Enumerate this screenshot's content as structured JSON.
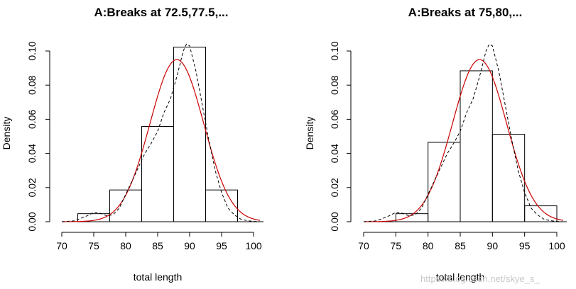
{
  "chart_data": [
    {
      "type": "bar",
      "title": "A:Breaks at 72.5,77.5,...",
      "xlabel": "total length",
      "ylabel": "Density",
      "xlim": [
        70,
        100
      ],
      "ylim": [
        0,
        0.1
      ],
      "xticks": [
        70,
        75,
        80,
        85,
        90,
        95,
        100
      ],
      "yticks": [
        0.0,
        0.02,
        0.04,
        0.06,
        0.08,
        0.1
      ],
      "ytick_labels": [
        "0.00",
        "0.02",
        "0.04",
        "0.06",
        "0.08",
        "0.10"
      ],
      "bins": [
        {
          "from": 72.5,
          "to": 77.5,
          "density": 0.0047
        },
        {
          "from": 77.5,
          "to": 82.5,
          "density": 0.0186
        },
        {
          "from": 82.5,
          "to": 87.5,
          "density": 0.0558
        },
        {
          "from": 87.5,
          "to": 92.5,
          "density": 0.1023
        },
        {
          "from": 92.5,
          "to": 97.5,
          "density": 0.0186
        }
      ],
      "normal_curve": {
        "color": "#cc0000",
        "mean": 88.0,
        "sd": 4.2
      },
      "density_curve": {
        "style": "dashed",
        "x": [
          70,
          72,
          74,
          75,
          76,
          77,
          78,
          79,
          80,
          81,
          82,
          83,
          84,
          85,
          86,
          87,
          88,
          89,
          89.5,
          90,
          91,
          92,
          93,
          94,
          95,
          96,
          97,
          98,
          99,
          100,
          101
        ],
        "y": [
          0.0,
          0.0005,
          0.0035,
          0.0055,
          0.005,
          0.0035,
          0.004,
          0.008,
          0.016,
          0.024,
          0.032,
          0.04,
          0.046,
          0.053,
          0.064,
          0.072,
          0.085,
          0.1,
          0.104,
          0.103,
          0.088,
          0.068,
          0.048,
          0.03,
          0.017,
          0.008,
          0.004,
          0.0015,
          0.0006,
          0.0002,
          0.0
        ]
      }
    },
    {
      "type": "bar",
      "title": "A:Breaks at 75,80,...",
      "xlabel": "total length",
      "ylabel": "Density",
      "xlim": [
        70,
        100
      ],
      "ylim": [
        0,
        0.1
      ],
      "xticks": [
        70,
        75,
        80,
        85,
        90,
        95,
        100
      ],
      "yticks": [
        0.0,
        0.02,
        0.04,
        0.06,
        0.08,
        0.1
      ],
      "ytick_labels": [
        "0.00",
        "0.02",
        "0.04",
        "0.06",
        "0.08",
        "0.10"
      ],
      "bins": [
        {
          "from": 75,
          "to": 80,
          "density": 0.0047
        },
        {
          "from": 80,
          "to": 85,
          "density": 0.0465
        },
        {
          "from": 85,
          "to": 90,
          "density": 0.0884
        },
        {
          "from": 90,
          "to": 95,
          "density": 0.0512
        },
        {
          "from": 95,
          "to": 100,
          "density": 0.0093
        }
      ],
      "normal_curve": {
        "color": "#cc0000",
        "mean": 88.0,
        "sd": 4.2
      },
      "density_curve": {
        "style": "dashed",
        "x": [
          70,
          72,
          74,
          75,
          76,
          77,
          78,
          79,
          80,
          81,
          82,
          83,
          84,
          85,
          86,
          87,
          88,
          89,
          89.5,
          90,
          91,
          92,
          93,
          94,
          95,
          96,
          97,
          98,
          99,
          100,
          101
        ],
        "y": [
          0.0,
          0.0005,
          0.0035,
          0.0055,
          0.005,
          0.0035,
          0.004,
          0.008,
          0.016,
          0.024,
          0.032,
          0.04,
          0.046,
          0.053,
          0.064,
          0.072,
          0.085,
          0.1,
          0.104,
          0.103,
          0.088,
          0.068,
          0.048,
          0.03,
          0.017,
          0.008,
          0.004,
          0.0015,
          0.0006,
          0.0002,
          0.0
        ]
      }
    }
  ],
  "watermark": "https://blog.csdn.net/skye_s_"
}
